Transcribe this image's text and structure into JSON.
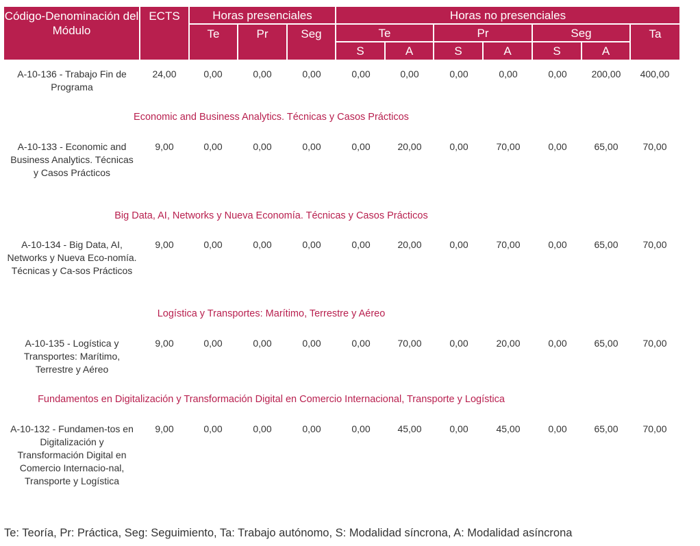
{
  "header": {
    "module": "Código-Denominación del Módulo",
    "ects": "ECTS",
    "presenciales": "Horas presenciales",
    "no_presenciales": "Horas no presenciales",
    "te": "Te",
    "pr": "Pr",
    "seg": "Seg",
    "ta": "Ta",
    "s": "S",
    "a": "A"
  },
  "rows": [
    {
      "section": "",
      "module": "A-10-136 - Trabajo Fin de Programa",
      "values": [
        "24,00",
        "0,00",
        "0,00",
        "0,00",
        "0,00",
        "0,00",
        "0,00",
        "0,00",
        "0,00",
        "200,00",
        "400,00"
      ]
    },
    {
      "section": "Economic and Business Analytics. Técnicas y Casos Prácticos",
      "module": "A-10-133 - Economic and Business Analytics. Técnicas y Casos Prácticos",
      "values": [
        "9,00",
        "0,00",
        "0,00",
        "0,00",
        "0,00",
        "20,00",
        "0,00",
        "70,00",
        "0,00",
        "65,00",
        "70,00"
      ]
    },
    {
      "section": "Big Data, AI, Networks y Nueva Economía. Técnicas y Casos Prácticos",
      "module": "A-10-134 - Big Data, AI, Networks y Nueva Eco-nomía. Técnicas y Ca-sos Prácticos",
      "values": [
        "9,00",
        "0,00",
        "0,00",
        "0,00",
        "0,00",
        "20,00",
        "0,00",
        "70,00",
        "0,00",
        "65,00",
        "70,00"
      ]
    },
    {
      "section": "Logística y Transportes: Marítimo, Terrestre y Aéreo",
      "module": "A-10-135 - Logística y Transportes: Marítimo, Terrestre y Aéreo",
      "values": [
        "9,00",
        "0,00",
        "0,00",
        "0,00",
        "0,00",
        "70,00",
        "0,00",
        "20,00",
        "0,00",
        "65,00",
        "70,00"
      ]
    },
    {
      "section": "Fundamentos en Digitalización y Transformación Digital en Comercio Internacional, Transporte y Logística",
      "module": "A-10-132 - Fundamen-tos en Digitalización y Transformación Digital en Comercio Internacio-nal, Transporte y Logística",
      "values": [
        "9,00",
        "0,00",
        "0,00",
        "0,00",
        "0,00",
        "45,00",
        "0,00",
        "45,00",
        "0,00",
        "65,00",
        "70,00"
      ]
    }
  ],
  "legend": "Te: Teoría, Pr: Práctica, Seg: Seguimiento, Ta: Trabajo autónomo, S: Modalidad síncrona, A: Modalidad asíncrona"
}
